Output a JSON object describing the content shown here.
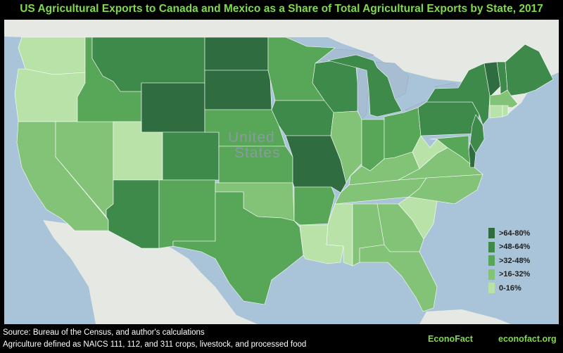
{
  "title": "US Agricultural Exports to Canada and Mexico as a Share of Total Agricultural Exports by State, 2017",
  "map_labels": {
    "country_line1": "United",
    "country_line2": "States"
  },
  "legend": {
    "items": [
      {
        "label": ">64-80%",
        "color": "#2f6c40"
      },
      {
        "label": ">48-64%",
        "color": "#3d8a4b"
      },
      {
        "label": ">32-48%",
        "color": "#58a657"
      },
      {
        "label": ">16-32%",
        "color": "#82c378"
      },
      {
        "label": "0-16%",
        "color": "#b9e2a9"
      }
    ]
  },
  "footer": {
    "source": "Source: Bureau of the Census, and author's calculations",
    "definition": "Agriculture defined as NAICS 111, 112, and 311 crops, livestock, and processed food",
    "brand": "EconoFact",
    "site": "econofact.org"
  },
  "colors": {
    "ocean": "#a9c4d8",
    "land": "#e6e8e4",
    "title": "#7fdb4a"
  },
  "chart_data": {
    "type": "choropleth",
    "year": 2017,
    "bins": [
      ">64-80%",
      ">48-64%",
      ">32-48%",
      ">16-32%",
      "0-16%"
    ],
    "states": {
      "WA": "0-16%",
      "OR": "0-16%",
      "CA": ">16-32%",
      "NV": ">16-32%",
      "ID": ">32-48%",
      "MT": ">48-64%",
      "WY": ">64-80%",
      "UT": "0-16%",
      "AZ": ">48-64%",
      "CO": ">48-64%",
      "NM": ">32-48%",
      "ND": ">64-80%",
      "SD": ">64-80%",
      "NE": ">32-48%",
      "KS": ">32-48%",
      "OK": ">16-32%",
      "TX": ">32-48%",
      "MN": ">32-48%",
      "IA": ">48-64%",
      "MO": ">64-80%",
      "AR": ">32-48%",
      "LA": "0-16%",
      "WI": ">48-64%",
      "IL": ">16-32%",
      "MI": ">48-64%",
      "IN": ">32-48%",
      "OH": ">32-48%",
      "KY": ">16-32%",
      "TN": ">16-32%",
      "MS": "0-16%",
      "AL": ">16-32%",
      "GA": ">16-32%",
      "FL": ">16-32%",
      "SC": "0-16%",
      "NC": ">16-32%",
      "VA": ">16-32%",
      "WV": "0-16%",
      "PA": ">48-64%",
      "NY": ">48-64%",
      "VT": ">64-80%",
      "NH": ">48-64%",
      "ME": ">48-64%",
      "MA": ">16-32%",
      "CT": "0-16%",
      "RI": "0-16%",
      "NJ": ">48-64%",
      "DE": ">64-80%",
      "MD": ">32-48%"
    }
  }
}
